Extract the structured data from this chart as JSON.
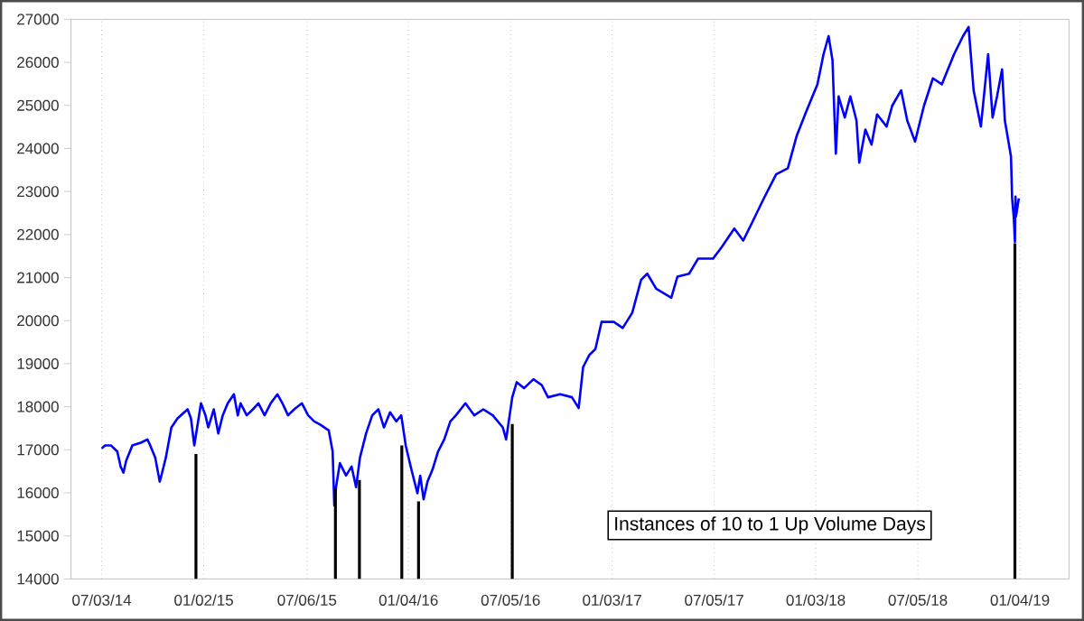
{
  "chart_data": {
    "type": "line",
    "xlim": [
      "2014-05-09",
      "2019-04-02"
    ],
    "ylim": [
      14000,
      27000
    ],
    "xticks": [
      {
        "value": "2014-07-03",
        "label": "07/03/14"
      },
      {
        "value": "2015-01-02",
        "label": "01/02/15"
      },
      {
        "value": "2015-07-06",
        "label": "07/06/15"
      },
      {
        "value": "2016-01-04",
        "label": "01/04/16"
      },
      {
        "value": "2016-07-05",
        "label": "07/05/16"
      },
      {
        "value": "2017-01-03",
        "label": "01/03/17"
      },
      {
        "value": "2017-07-05",
        "label": "07/05/17"
      },
      {
        "value": "2018-01-03",
        "label": "01/03/18"
      },
      {
        "value": "2018-07-05",
        "label": "07/05/18"
      },
      {
        "value": "2019-01-04",
        "label": "01/04/19"
      }
    ],
    "yticks": [
      14000,
      15000,
      16000,
      17000,
      18000,
      19000,
      20000,
      21000,
      22000,
      23000,
      24000,
      25000,
      26000,
      27000
    ],
    "grid": "x",
    "annotations": [
      "Instances of 10 to 1 Up Volume Days"
    ],
    "series": [
      {
        "color": "#0000ff",
        "x": [
          "2014-07-03",
          "2014-07-09",
          "2014-07-20",
          "2014-07-31",
          "2014-08-06",
          "2014-08-11",
          "2014-08-16",
          "2014-08-27",
          "2014-09-12",
          "2014-09-23",
          "2014-09-28",
          "2014-10-07",
          "2014-10-15",
          "2014-10-18",
          "2014-10-26",
          "2014-11-05",
          "2014-11-16",
          "2014-12-04",
          "2014-12-10",
          "2014-12-16",
          "2014-12-28",
          "2015-01-05",
          "2015-01-10",
          "2015-01-20",
          "2015-01-28",
          "2015-02-05",
          "2015-02-14",
          "2015-02-25",
          "2015-03-04",
          "2015-03-09",
          "2015-03-20",
          "2015-03-31",
          "2015-04-10",
          "2015-04-21",
          "2015-05-02",
          "2015-05-14",
          "2015-05-23",
          "2015-06-02",
          "2015-06-13",
          "2015-06-27",
          "2015-07-08",
          "2015-07-19",
          "2015-07-29",
          "2015-08-14",
          "2015-08-21",
          "2015-08-24",
          "2015-08-27",
          "2015-09-03",
          "2015-09-14",
          "2015-09-24",
          "2015-10-02",
          "2015-10-09",
          "2015-10-20",
          "2015-10-31",
          "2015-11-11",
          "2015-11-21",
          "2015-12-02",
          "2015-12-13",
          "2015-12-22",
          "2015-12-30",
          "2016-01-09",
          "2016-01-20",
          "2016-01-25",
          "2016-01-31",
          "2016-02-07",
          "2016-02-16",
          "2016-02-26",
          "2016-03-08",
          "2016-03-19",
          "2016-03-29",
          "2016-04-15",
          "2016-05-01",
          "2016-05-17",
          "2016-06-03",
          "2016-06-21",
          "2016-06-27",
          "2016-07-08",
          "2016-07-16",
          "2016-07-29",
          "2016-08-15",
          "2016-08-30",
          "2016-09-10",
          "2016-10-02",
          "2016-10-23",
          "2016-11-04",
          "2016-11-12",
          "2016-11-23",
          "2016-12-04",
          "2016-12-15",
          "2017-01-06",
          "2017-01-22",
          "2017-02-08",
          "2017-02-24",
          "2017-03-07",
          "2017-03-23",
          "2017-04-19",
          "2017-04-30",
          "2017-05-21",
          "2017-06-06",
          "2017-07-03",
          "2017-07-19",
          "2017-08-10",
          "2017-08-26",
          "2017-09-11",
          "2017-10-02",
          "2017-10-24",
          "2017-11-14",
          "2017-11-30",
          "2017-12-17",
          "2018-01-06",
          "2018-01-17",
          "2018-01-26",
          "2018-02-02",
          "2018-02-08",
          "2018-02-13",
          "2018-02-24",
          "2018-03-06",
          "2018-03-17",
          "2018-03-22",
          "2018-04-02",
          "2018-04-13",
          "2018-04-23",
          "2018-05-10",
          "2018-05-20",
          "2018-06-05",
          "2018-06-16",
          "2018-06-30",
          "2018-07-16",
          "2018-08-01",
          "2018-08-17",
          "2018-09-08",
          "2018-09-24",
          "2018-10-04",
          "2018-10-13",
          "2018-10-26",
          "2018-11-08",
          "2018-11-16",
          "2018-11-24",
          "2018-12-03",
          "2018-12-08",
          "2018-12-19",
          "2018-12-21",
          "2018-12-24",
          "2018-12-26",
          "2018-12-27",
          "2018-12-28",
          "2019-01-02"
        ],
        "values": [
          17030,
          17100,
          17100,
          16960,
          16610,
          16470,
          16750,
          17100,
          17170,
          17240,
          17100,
          16820,
          16260,
          16400,
          16820,
          17520,
          17730,
          17940,
          17730,
          17100,
          18080,
          17800,
          17520,
          17940,
          17380,
          17800,
          18080,
          18290,
          17800,
          18080,
          17800,
          17940,
          18080,
          17800,
          18080,
          18290,
          18080,
          17800,
          17940,
          18080,
          17800,
          17660,
          17590,
          17450,
          16960,
          15710,
          16130,
          16690,
          16400,
          16610,
          16130,
          16820,
          17380,
          17800,
          17940,
          17520,
          17870,
          17660,
          17800,
          17100,
          16550,
          15990,
          16400,
          15850,
          16260,
          16540,
          16960,
          17240,
          17660,
          17800,
          18080,
          17800,
          17940,
          17800,
          17520,
          17240,
          18220,
          18570,
          18430,
          18640,
          18500,
          18220,
          18290,
          18220,
          17970,
          18920,
          19200,
          19340,
          19970,
          19970,
          19830,
          20180,
          20950,
          21090,
          20740,
          20530,
          21020,
          21090,
          21440,
          21440,
          21720,
          22140,
          21860,
          22280,
          22840,
          23400,
          23540,
          24300,
          24860,
          25490,
          26190,
          26610,
          26050,
          23880,
          25210,
          24720,
          25210,
          24650,
          23670,
          24440,
          24090,
          24790,
          24510,
          24990,
          25350,
          24650,
          24160,
          24990,
          25630,
          25490,
          26190,
          26610,
          26820,
          25350,
          24510,
          26190,
          24720,
          25210,
          25840,
          24650,
          23810,
          22840,
          22400,
          21830,
          22880,
          22420,
          22840
        ]
      },
      {
        "type": "bar",
        "color": "#000000",
        "x": [
          "2014-12-19",
          "2015-08-26",
          "2015-10-08",
          "2015-12-23",
          "2016-01-22",
          "2016-07-08",
          "2018-12-26"
        ],
        "values": [
          16900,
          16100,
          16300,
          17100,
          15800,
          17600,
          21800
        ]
      }
    ]
  }
}
